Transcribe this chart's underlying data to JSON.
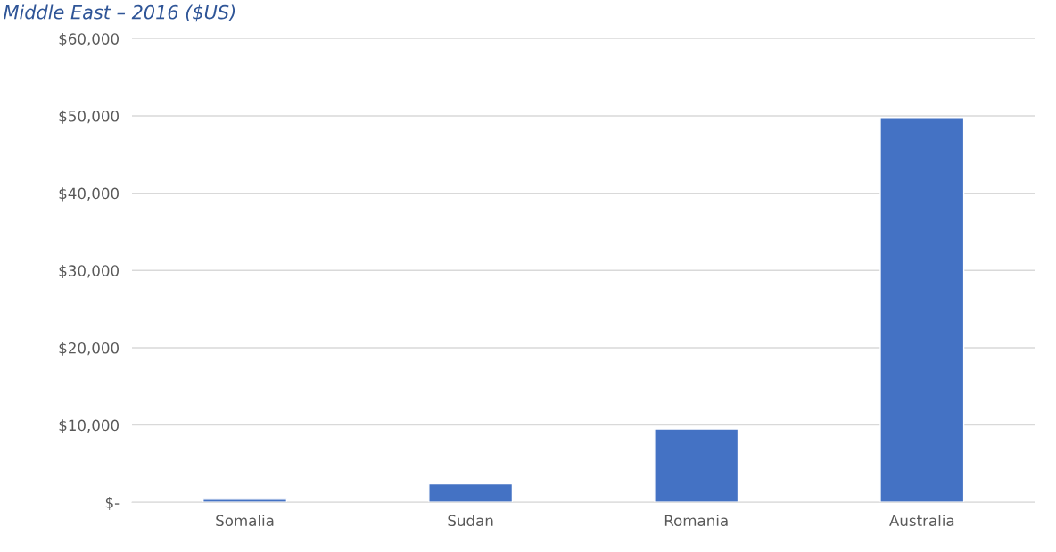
{
  "chart_data": {
    "type": "bar",
    "title": "Middle East – 2016 ($US)",
    "categories": [
      "Somalia",
      "Sudan",
      "Romania",
      "Australia"
    ],
    "values": [
      400,
      2400,
      9500,
      49800
    ],
    "color": "#4472c4",
    "ylim": [
      0,
      60000
    ],
    "yticks": [
      {
        "value": 0,
        "label": "$-"
      },
      {
        "value": 10000,
        "label": "$10,000"
      },
      {
        "value": 20000,
        "label": "$20,000"
      },
      {
        "value": 30000,
        "label": "$30,000"
      },
      {
        "value": 40000,
        "label": "$40,000"
      },
      {
        "value": 50000,
        "label": "$50,000"
      },
      {
        "value": 60000,
        "label": "$60,000"
      }
    ],
    "grid": "y",
    "legend": false
  }
}
